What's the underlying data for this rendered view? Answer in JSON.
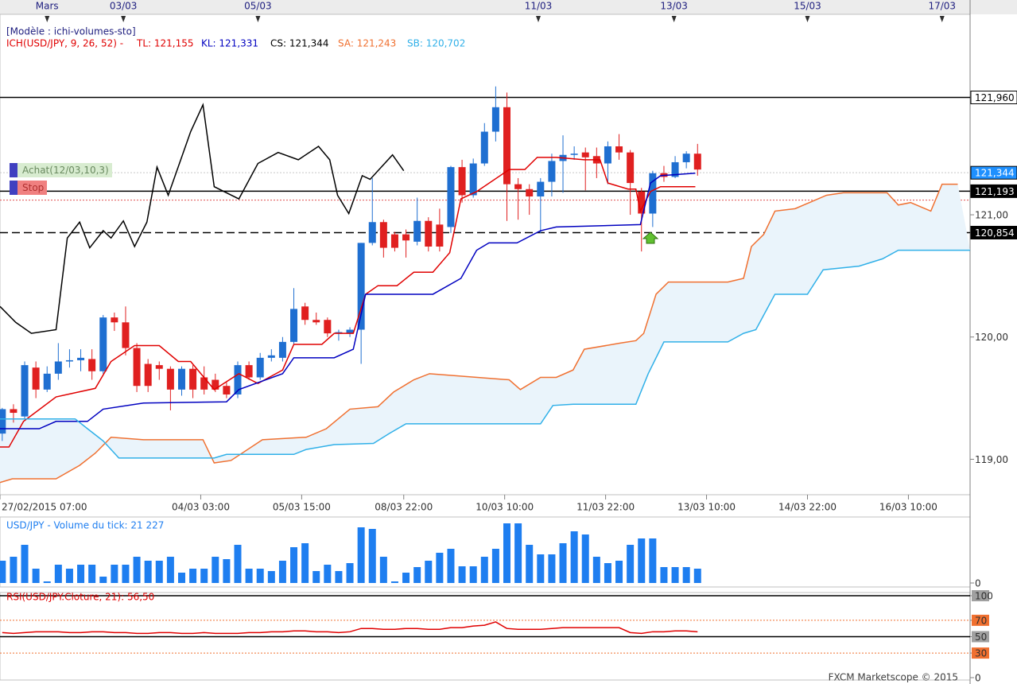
{
  "chart_data": [
    {
      "type": "candlestick",
      "title": "[Modèle : ichi-volumes-sto]",
      "subtitle": "ICH(USD/JPY, 9, 26, 52) -",
      "xlim": [
        -0.2,
        86.3
      ],
      "ylim": [
        118.71,
        122.64
      ],
      "yticks": [
        {
          "value": 119,
          "label": "119,00"
        },
        {
          "value": 120,
          "label": "120,00"
        },
        {
          "value": 121,
          "label": "121,00"
        }
      ],
      "xticks": [
        {
          "value": -0.2,
          "label": "27/02/2015 07:00"
        },
        {
          "value": 17.7,
          "label": "04/03 03:00"
        },
        {
          "value": 26.7,
          "label": "05/03 15:00"
        },
        {
          "value": 35.8,
          "label": "08/03 22:00"
        },
        {
          "value": 44.8,
          "label": "10/03 10:00"
        },
        {
          "value": 53.8,
          "label": "11/03 22:00"
        },
        {
          "value": 62.8,
          "label": "13/03 10:00"
        },
        {
          "value": 71.8,
          "label": "14/03 22:00"
        },
        {
          "value": 80.8,
          "label": "16/03 10:00"
        }
      ],
      "top_xticks": [
        {
          "value": 4.0,
          "label": "Mars"
        },
        {
          "value": 10.8,
          "label": "03/03"
        },
        {
          "value": 22.8,
          "label": "05/03"
        },
        {
          "value": 47.8,
          "label": "11/03"
        },
        {
          "value": 59.9,
          "label": "13/03"
        },
        {
          "value": 71.8,
          "label": "15/03"
        },
        {
          "value": 83.8,
          "label": "17/03"
        }
      ],
      "up_color": "#1f6fd1",
      "down_color": "#e02020",
      "open": [
        119.21,
        119.41,
        119.35,
        119.75,
        119.57,
        119.7,
        119.8,
        119.81,
        119.82,
        119.72,
        120.16,
        120.12,
        119.91,
        119.78,
        119.77,
        119.74,
        119.57,
        119.74,
        119.67,
        119.65,
        119.6,
        119.53,
        119.77,
        119.67,
        119.83,
        119.83,
        119.96,
        120.25,
        120.14,
        120.14,
        120.03,
        120.03,
        120.06,
        120.77,
        120.94,
        120.84,
        120.84,
        120.78,
        120.95,
        120.92,
        120.9,
        121.39,
        121.16,
        121.42,
        121.68,
        121.88,
        121.25,
        121.21,
        121.15,
        121.27,
        121.44,
        121.49,
        121.51,
        121.48,
        121.42,
        121.56,
        121.51,
        121.19,
        121.01,
        121.34,
        121.31,
        121.43,
        121.5
      ],
      "high": [
        119.42,
        119.45,
        119.8,
        119.8,
        119.76,
        119.95,
        119.9,
        119.9,
        119.9,
        120.18,
        120.2,
        120.25,
        119.95,
        119.82,
        119.8,
        119.76,
        119.76,
        119.77,
        119.76,
        119.7,
        119.63,
        119.8,
        119.8,
        119.87,
        119.9,
        120.0,
        120.4,
        120.28,
        120.2,
        120.16,
        120.06,
        120.08,
        120.77,
        121.3,
        120.96,
        120.86,
        120.88,
        121.14,
        120.98,
        121.05,
        121.4,
        121.45,
        121.46,
        121.75,
        122.05,
        122.0,
        121.3,
        121.25,
        121.3,
        121.5,
        121.65,
        121.56,
        121.55,
        121.55,
        121.6,
        121.66,
        121.53,
        121.22,
        121.36,
        121.4,
        121.48,
        121.52,
        121.58
      ],
      "low": [
        119.15,
        119.3,
        119.33,
        119.5,
        119.55,
        119.65,
        119.75,
        119.72,
        119.65,
        119.7,
        120.05,
        119.85,
        119.55,
        119.55,
        119.65,
        119.4,
        119.52,
        119.5,
        119.53,
        119.55,
        119.5,
        119.5,
        119.65,
        119.65,
        119.8,
        119.8,
        119.94,
        120.1,
        120.1,
        120.0,
        119.97,
        120.0,
        119.78,
        120.75,
        120.65,
        120.7,
        120.65,
        120.75,
        120.7,
        120.7,
        120.85,
        121.1,
        121.14,
        121.4,
        121.6,
        120.95,
        120.96,
        121.0,
        120.85,
        121.15,
        121.18,
        121.45,
        121.2,
        121.3,
        121.25,
        121.45,
        121.0,
        120.7,
        120.9,
        121.27,
        121.3,
        121.38,
        121.32
      ],
      "close": [
        119.41,
        119.38,
        119.77,
        119.57,
        119.7,
        119.8,
        119.81,
        119.83,
        119.72,
        120.16,
        120.12,
        119.91,
        119.6,
        119.6,
        119.74,
        119.57,
        119.74,
        119.57,
        119.57,
        119.57,
        119.53,
        119.77,
        119.67,
        119.83,
        119.85,
        119.96,
        120.23,
        120.14,
        120.12,
        120.03,
        120.04,
        120.06,
        120.77,
        120.94,
        120.73,
        120.73,
        120.79,
        120.95,
        120.74,
        120.74,
        121.39,
        121.16,
        121.42,
        121.68,
        121.88,
        121.25,
        121.21,
        121.15,
        121.27,
        121.44,
        121.49,
        121.5,
        121.47,
        121.42,
        121.56,
        121.51,
        121.26,
        121.01,
        121.34,
        121.31,
        121.43,
        121.5,
        121.37
      ],
      "cloud_color": "#eaf4fb",
      "series": [
        {
          "name": "TL: 121,155",
          "color": "#e00000",
          "x": [
            -0.2,
            0.6,
            1.9,
            4.8,
            8.3,
            9.7,
            11.8,
            14.0,
            15.7,
            16.8,
            18.9,
            21.1,
            22.8,
            25.0,
            26.0,
            28.5,
            29.6,
            31.3,
            32.4,
            33.5,
            35.2,
            36.7,
            38.4,
            39.9,
            40.9,
            42.3,
            45.2,
            46.6,
            47.7,
            49.4,
            51.9,
            53.3,
            54.0,
            55.8,
            56.5,
            56.9,
            57.8,
            58.7,
            61.8
          ],
          "values": [
            119.1,
            119.1,
            119.31,
            119.51,
            119.58,
            119.8,
            119.93,
            119.93,
            119.8,
            119.8,
            119.57,
            119.7,
            119.62,
            119.73,
            119.94,
            119.94,
            120.03,
            120.03,
            120.35,
            120.42,
            120.42,
            120.53,
            120.53,
            120.69,
            121.13,
            121.19,
            121.37,
            121.37,
            121.47,
            121.47,
            121.45,
            121.45,
            121.26,
            121.21,
            121.21,
            121.03,
            121.19,
            121.23,
            121.23
          ]
        },
        {
          "name": "KL: 121,331",
          "color": "#0000c0",
          "x": [
            -0.2,
            3.3,
            4.8,
            7.6,
            9.0,
            12.6,
            20.0,
            21.1,
            25.0,
            26.0,
            29.6,
            31.3,
            32.4,
            38.4,
            40.9,
            42.3,
            43.4,
            45.9,
            48.0,
            49.4,
            56.9,
            57.8,
            58.7,
            61.8
          ],
          "values": [
            119.25,
            119.25,
            119.31,
            119.31,
            119.41,
            119.46,
            119.47,
            119.57,
            119.7,
            119.83,
            119.83,
            119.9,
            120.35,
            120.35,
            120.48,
            120.71,
            120.77,
            120.77,
            120.87,
            120.9,
            120.92,
            121.26,
            121.32,
            121.34
          ]
        },
        {
          "name": "CS: 121,344",
          "color": "#000000",
          "x": [
            -0.2,
            1.2,
            2.6,
            4.8,
            5.8,
            6.9,
            7.8,
            9.0,
            9.7,
            10.8,
            11.8,
            12.9,
            13.8,
            14.8,
            16.8,
            17.9,
            18.9,
            21.1,
            22.8,
            24.6,
            26.4,
            28.2,
            29.2,
            29.9,
            30.9,
            32.1,
            32.8,
            34.8,
            35.8
          ],
          "values": [
            120.25,
            120.12,
            120.03,
            120.06,
            120.81,
            120.94,
            120.73,
            120.87,
            120.81,
            120.95,
            120.74,
            120.94,
            121.39,
            121.16,
            121.68,
            121.9,
            121.23,
            121.13,
            121.42,
            121.51,
            121.45,
            121.56,
            121.45,
            121.16,
            121.01,
            121.32,
            121.29,
            121.49,
            121.36
          ]
        },
        {
          "name": "SA: 121,243",
          "color": "#f07030",
          "x": [
            -0.2,
            0.9,
            4.8,
            6.9,
            8.3,
            9.7,
            12.6,
            17.9,
            18.9,
            20.4,
            23.2,
            27.1,
            28.9,
            31.0,
            33.5,
            34.9,
            36.7,
            38.1,
            45.2,
            46.2,
            48.0,
            49.4,
            50.9,
            51.9,
            55.1,
            56.5,
            57.2,
            58.3,
            59.4,
            64.7,
            66.1,
            66.8,
            67.9,
            68.9,
            70.7,
            73.5,
            75.0,
            78.9,
            79.9,
            81.0,
            82.8,
            83.8,
            85.2
          ],
          "values": [
            118.81,
            118.84,
            118.84,
            118.95,
            119.05,
            119.18,
            119.16,
            119.16,
            118.97,
            118.99,
            119.16,
            119.18,
            119.25,
            119.41,
            119.43,
            119.55,
            119.65,
            119.7,
            119.65,
            119.57,
            119.67,
            119.67,
            119.73,
            119.9,
            119.95,
            119.97,
            120.03,
            120.35,
            120.45,
            120.45,
            120.48,
            120.74,
            120.84,
            121.03,
            121.05,
            121.16,
            121.18,
            121.18,
            121.08,
            121.1,
            121.03,
            121.25,
            121.25
          ]
        },
        {
          "name": "SB: 120,702",
          "color": "#30b0e8",
          "x": [
            -0.2,
            6.5,
            7.6,
            9.0,
            10.4,
            18.9,
            20.0,
            26.0,
            27.1,
            29.6,
            33.1,
            34.5,
            36.0,
            48.0,
            49.1,
            50.9,
            56.5,
            57.6,
            59.0,
            64.7,
            66.1,
            67.2,
            68.9,
            71.8,
            73.2,
            76.4,
            78.5,
            79.9,
            86.3
          ],
          "values": [
            119.33,
            119.33,
            119.25,
            119.15,
            119.01,
            119.01,
            119.04,
            119.04,
            119.08,
            119.12,
            119.13,
            119.21,
            119.29,
            119.29,
            119.44,
            119.45,
            119.45,
            119.7,
            119.96,
            119.96,
            120.03,
            120.06,
            120.35,
            120.35,
            120.55,
            120.58,
            120.64,
            120.71,
            120.71
          ]
        }
      ],
      "levels": [
        {
          "value": 121.96,
          "label": "121,960",
          "style": "solid",
          "color": "#000000",
          "label_bg": "#ffffff"
        },
        {
          "value": 121.344,
          "label": "121,344",
          "style": "dotted",
          "color": "#c8c8c8",
          "label_bg": "#1e90ff"
        },
        {
          "value": 121.193,
          "label": "121,193",
          "style": "solid",
          "color": "#000000",
          "label_bg": "#000000"
        },
        {
          "value": 121.12,
          "style": "dotted",
          "color": "#e05050"
        },
        {
          "value": 120.854,
          "label": "120,854",
          "style": "dashed",
          "color": "#000000",
          "label_bg": "#000000"
        }
      ],
      "annotations": [
        "Achat(12/03,10,3)",
        "Stop"
      ]
    },
    {
      "type": "bar",
      "title": "USD/JPY - Volume du tick: 21 227",
      "color": "#1e7ef0",
      "xlim": [
        -0.2,
        86.3
      ],
      "ylim": [
        0,
        80
      ],
      "yticks": [
        0
      ],
      "values": [
        28,
        33,
        48,
        18,
        2,
        23,
        18,
        23,
        23,
        8,
        23,
        23,
        33,
        28,
        28,
        33,
        13,
        18,
        18,
        33,
        30,
        48,
        18,
        18,
        15,
        28,
        45,
        50,
        15,
        23,
        15,
        25,
        70,
        68,
        33,
        2,
        13,
        20,
        28,
        38,
        43,
        21,
        21,
        33,
        43,
        75,
        75,
        48,
        36,
        36,
        50,
        65,
        61,
        33,
        25,
        28,
        48,
        56,
        56,
        20,
        20,
        20,
        18
      ]
    },
    {
      "type": "line",
      "title": "RSI(USD/JPY.Cloture, 21): 56,50",
      "color": "#e00000",
      "xlim": [
        -0.2,
        86.3
      ],
      "ylim": [
        0,
        100
      ],
      "yticks": [
        0,
        30,
        50,
        70,
        100
      ],
      "values": [
        55,
        54,
        55,
        56,
        56,
        56,
        55,
        55,
        56,
        56,
        55,
        55,
        54,
        54,
        55,
        55,
        54,
        54,
        55,
        54,
        54,
        54,
        55,
        55,
        56,
        56,
        57,
        57,
        56,
        56,
        55,
        56,
        60,
        60,
        59,
        59,
        60,
        60,
        59,
        59,
        61,
        61,
        63,
        64,
        68,
        60,
        59,
        59,
        59,
        60,
        61,
        61,
        61,
        61,
        61,
        61,
        55,
        54,
        56,
        56,
        57,
        57,
        56
      ],
      "levels": [
        {
          "value": 100,
          "style": "solid",
          "color": "#000000",
          "label_bg": "#a0a0a0"
        },
        {
          "value": 70,
          "style": "dotted",
          "color": "#f07030",
          "label_bg": "#f07030"
        },
        {
          "value": 50,
          "style": "solid",
          "color": "#000000",
          "label_bg": "#a0a0a0"
        },
        {
          "value": 30,
          "style": "dotted",
          "color": "#f07030",
          "label_bg": "#f07030"
        }
      ]
    }
  ],
  "footer": "FXCM Marketscope © 2015"
}
